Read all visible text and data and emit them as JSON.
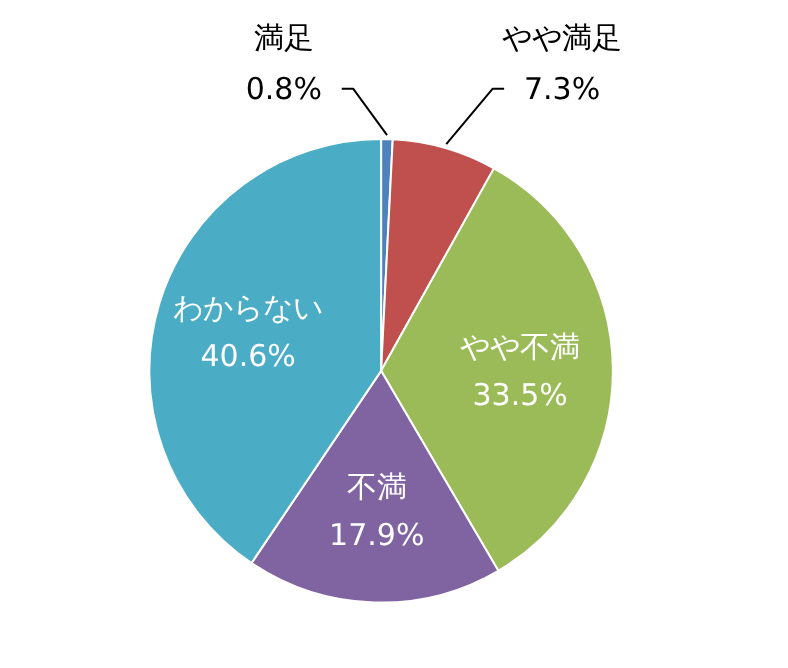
{
  "chart_data": {
    "type": "pie",
    "categories": [
      "満足",
      "やや満足",
      "やや不満",
      "不満",
      "わからない"
    ],
    "values": [
      0.8,
      7.3,
      33.5,
      17.9,
      40.6
    ],
    "colors": [
      "#4f81bd",
      "#c0504d",
      "#9bbb59",
      "#8064a2",
      "#4bacc6"
    ],
    "value_labels": [
      "0.8%",
      "7.3%",
      "33.5%",
      "17.9%",
      "40.6%"
    ]
  }
}
